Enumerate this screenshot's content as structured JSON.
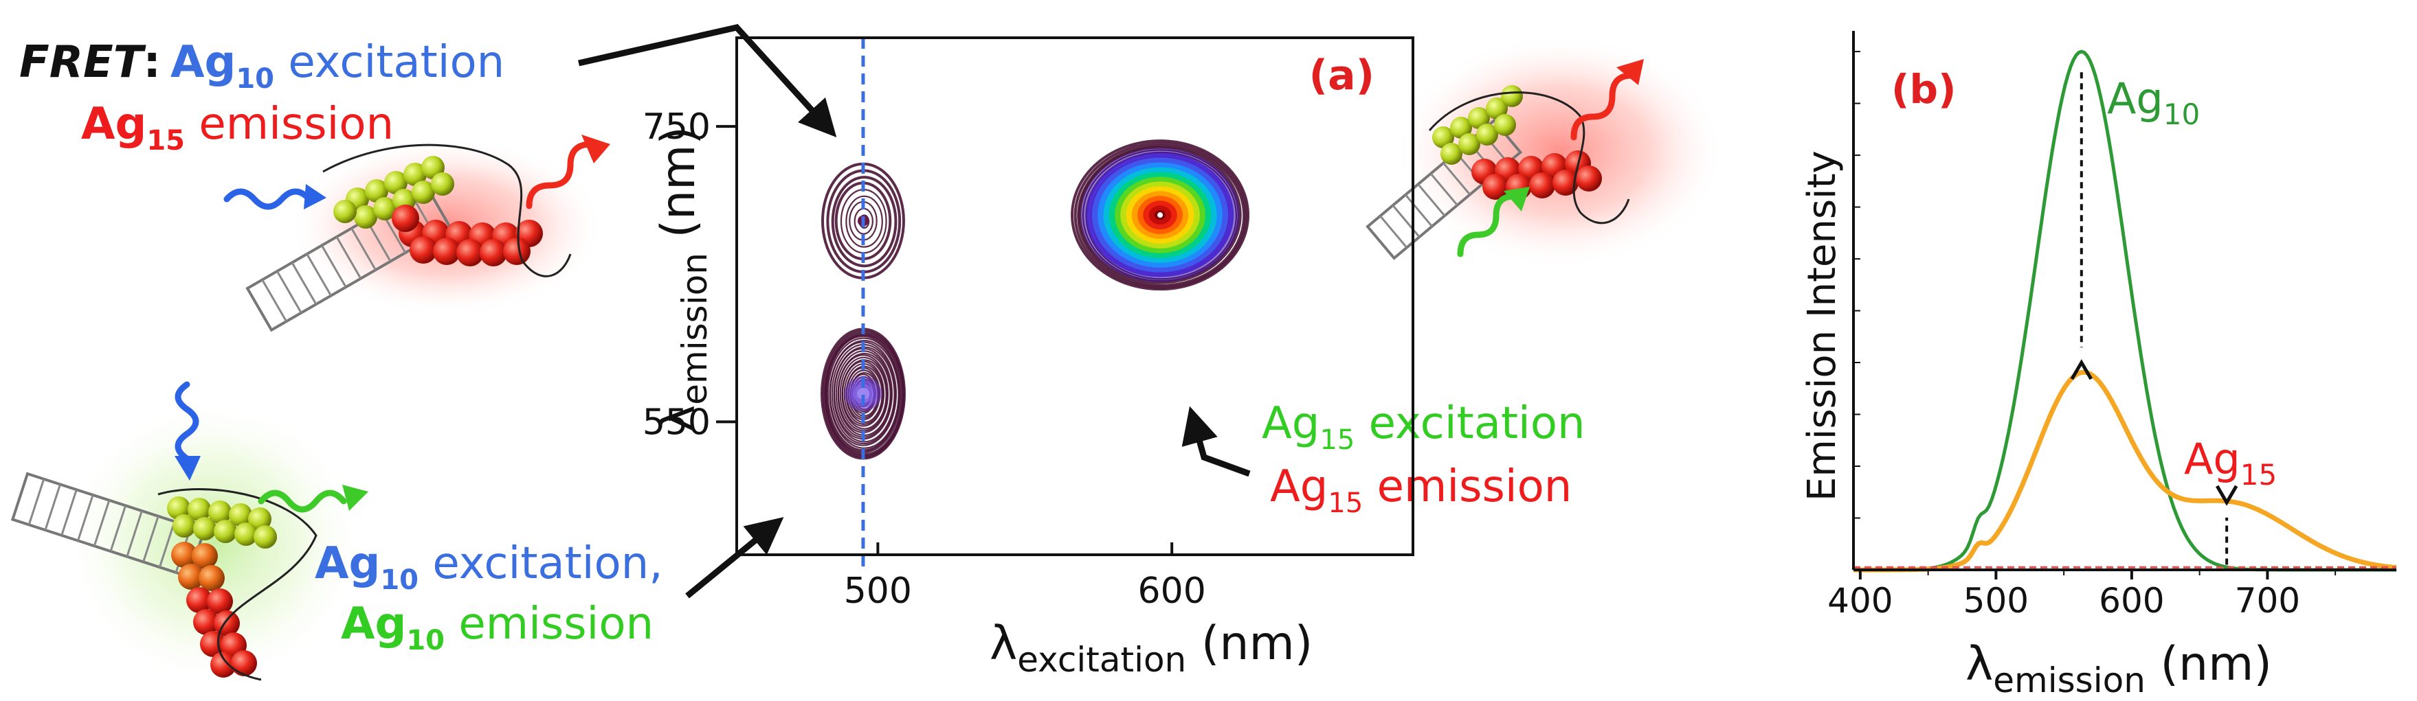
{
  "colors": {
    "blue": "#3b6fe0",
    "green": "#33cc22",
    "red": "#ee1c1c",
    "black": "#111111",
    "panel_a_red": "#e02020",
    "ag10_line": "#2e9a36",
    "mix_line": "#f5a623",
    "baseline": "#e34c4c",
    "contour": "#4a1436",
    "ladder": "#777777"
  },
  "annotations": {
    "fret": {
      "prefix": "FRET",
      "colon": ":",
      "line1_species": "Ag",
      "line1_sub": "10",
      "line1_text": " excitation",
      "line2_species": "Ag",
      "line2_sub": "15",
      "line2_text": " emission"
    },
    "ag10_pair": {
      "line1_species": "Ag",
      "line1_sub": "10",
      "line1_text": " excitation,",
      "line2_species": "Ag",
      "line2_sub": "10",
      "line2_text": " emission"
    },
    "ag15_pair": {
      "line1_species": "Ag",
      "line1_sub": "15",
      "line1_text": " excitation",
      "line2_species": "Ag",
      "line2_sub": "15",
      "line2_text": " emission"
    }
  },
  "chart_data": [
    {
      "panel": "(a)",
      "type": "heatmap",
      "subtype": "excitation-emission contour map",
      "title": "",
      "xlabel": {
        "main": "λ",
        "sub": "excitation",
        "unit": " (nm)"
      },
      "ylabel": {
        "main": "λ",
        "sub": "emission",
        "unit": " (nm)"
      },
      "xlim": [
        452,
        682
      ],
      "ylim": [
        460,
        810
      ],
      "x_ticks": [
        500,
        600
      ],
      "y_ticks": [
        550,
        750
      ],
      "dashed_line_x": 495,
      "peaks": [
        {
          "name": "Ag10",
          "excitation": 495,
          "emission": 569,
          "rx": 60,
          "ry": 94,
          "rings": 30,
          "note": "Ag10 excitation, Ag10 emission"
        },
        {
          "name": "Ag10 to Ag15 FRET",
          "excitation": 495,
          "emission": 686,
          "rx": 59,
          "ry": 83,
          "rings": 9,
          "note": "FRET: Ag10 excitation, Ag15 emission"
        },
        {
          "name": "Ag15",
          "excitation": 596,
          "emission": 690,
          "rx": 128,
          "ry": 108,
          "rings": 34,
          "note": "Ag15 excitation, Ag15 emission"
        }
      ]
    },
    {
      "panel": "(b)",
      "type": "line",
      "title": "",
      "xlabel": {
        "main": "λ",
        "sub": "emission",
        "unit": " (nm)"
      },
      "ylabel": "Emission Intensity",
      "xlim": [
        395,
        795
      ],
      "ylim": [
        0,
        1.02
      ],
      "x_ticks": [
        400,
        500,
        600,
        700
      ],
      "series": [
        {
          "name": "Ag10",
          "label": "Ag",
          "label_sub": "10",
          "color": "#2e9a36",
          "peak_x": 563,
          "peak_y": 1.0,
          "width": 33,
          "side_x": 487,
          "side_y": 0.03
        },
        {
          "name": "Ag10 + Ag15",
          "label": "",
          "label_sub": "",
          "color": "#f5a623",
          "peak_x": 563,
          "peak_y": 0.37,
          "width": 34,
          "peak2_x": 670,
          "peak2_y": 0.13,
          "width2": 48,
          "side_x": 487,
          "side_y": 0.02
        },
        {
          "name": "baseline",
          "label": "",
          "label_sub": "",
          "color": "#e34c4c",
          "constant_y": 0.005
        }
      ],
      "annotations": [
        {
          "label": "Ag",
          "label_sub": "10",
          "from": [
            563,
            0.96
          ],
          "to": [
            563,
            0.4
          ],
          "direction": "down"
        },
        {
          "label": "Ag",
          "label_sub": "15",
          "from": [
            670,
            0.01
          ],
          "to": [
            670,
            0.13
          ],
          "direction": "up"
        }
      ]
    }
  ]
}
